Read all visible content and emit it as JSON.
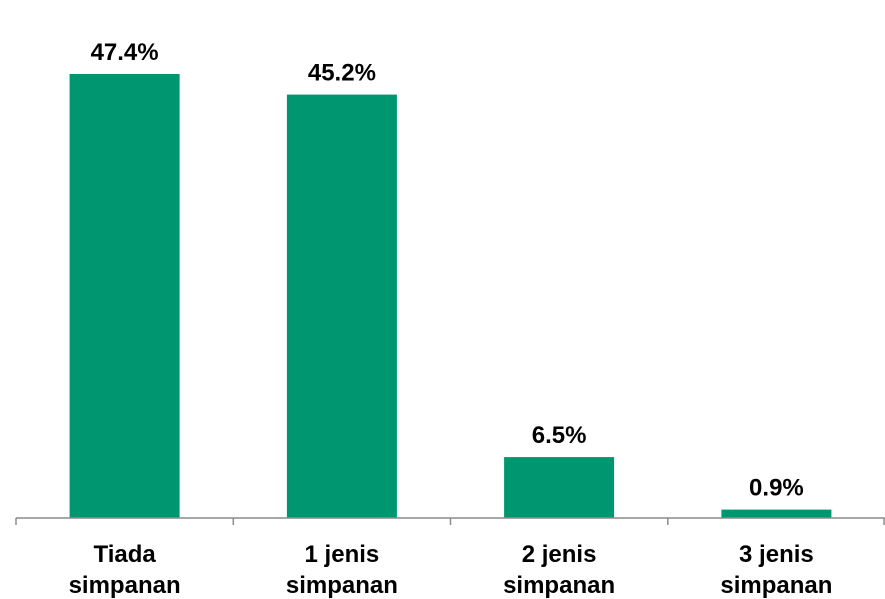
{
  "chart_data": {
    "type": "bar",
    "title": "",
    "xlabel": "",
    "ylabel": "",
    "categories": [
      [
        "Tiada",
        "simpanan"
      ],
      [
        "1 jenis",
        "simpanan"
      ],
      [
        "2 jenis",
        "simpanan"
      ],
      [
        "3 jenis",
        "simpanan"
      ]
    ],
    "values": [
      47.4,
      45.2,
      6.5,
      0.9
    ],
    "value_labels": [
      "47.4%",
      "45.2%",
      "6.5%",
      "0.9%"
    ],
    "unit": "%",
    "ylim": [
      0,
      50
    ],
    "grid": false,
    "legend": "none",
    "bar_color": "#009670",
    "axis_color": "#8c8c8c"
  }
}
